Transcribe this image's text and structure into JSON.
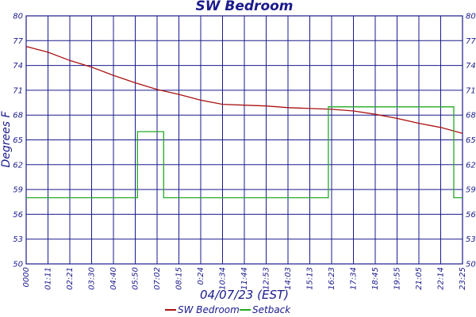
{
  "chart_data": {
    "type": "line",
    "title": "SW Bedroom",
    "xlabel": "04/07/23 (EST)",
    "ylabel": "Degrees F",
    "x": [
      "0000",
      "01:11",
      "02:21",
      "03:30",
      "04:40",
      "05:50",
      "07:02",
      "08:15",
      "0:24",
      "10:34",
      "11:44",
      "12:53",
      "14:03",
      "15:13",
      "16:23",
      "17:34",
      "18:45",
      "19:55",
      "21:05",
      "22:14",
      "23:25"
    ],
    "yticks": [
      80,
      77,
      74,
      71,
      68,
      65,
      62,
      59,
      56,
      53,
      50
    ],
    "ylim": [
      50,
      80
    ],
    "grid": true,
    "legend_position": "bottom",
    "colors": {
      "axis": "#1a1a8c",
      "grid": "#1a1a8c",
      "sw_bedroom": "#aa1111",
      "setback": "#22aa22"
    },
    "series": [
      {
        "name": "SW Bedroom",
        "color": "#aa1111",
        "points": [
          [
            0,
            76.3
          ],
          [
            1,
            75.6
          ],
          [
            2,
            74.6
          ],
          [
            3,
            73.8
          ],
          [
            4,
            72.8
          ],
          [
            5,
            71.9
          ],
          [
            6,
            71.1
          ],
          [
            7,
            70.5
          ],
          [
            8,
            69.8
          ],
          [
            9,
            69.3
          ],
          [
            10,
            69.2
          ],
          [
            11,
            69.1
          ],
          [
            12,
            68.9
          ],
          [
            13,
            68.8
          ],
          [
            14,
            68.7
          ],
          [
            15,
            68.5
          ],
          [
            16,
            68.1
          ],
          [
            17,
            67.6
          ],
          [
            18,
            67.0
          ],
          [
            19,
            66.5
          ],
          [
            20,
            65.8
          ]
        ]
      },
      {
        "name": "Setback",
        "color": "#22aa22",
        "points": [
          [
            0,
            58
          ],
          [
            5.1,
            58
          ],
          [
            5.1,
            66
          ],
          [
            6.3,
            66
          ],
          [
            6.3,
            58
          ],
          [
            13.85,
            58
          ],
          [
            13.85,
            69
          ],
          [
            19.6,
            69
          ],
          [
            19.6,
            58
          ],
          [
            20,
            58
          ]
        ]
      }
    ]
  }
}
